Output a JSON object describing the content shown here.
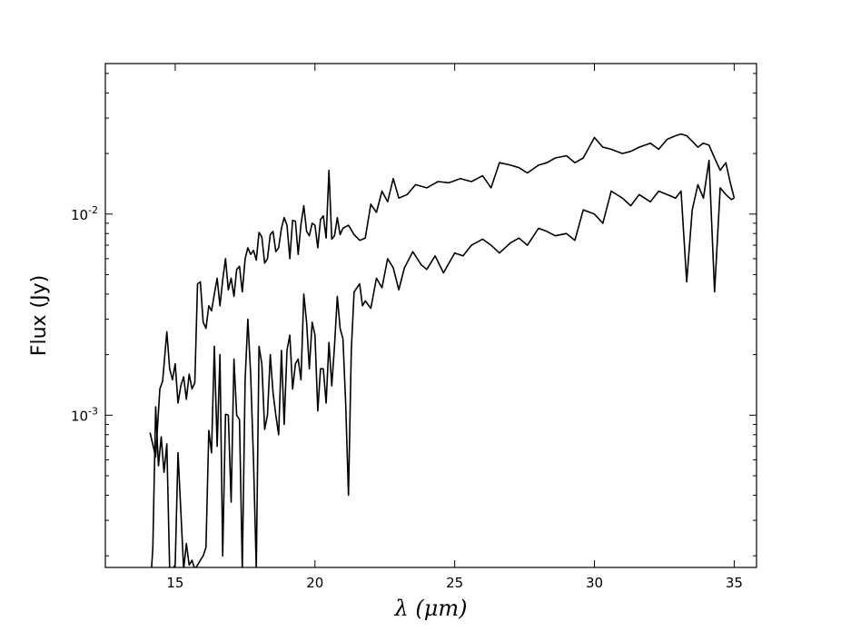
{
  "chart_data": {
    "type": "line",
    "title": "",
    "xlabel": "λ (μm)",
    "ylabel": "Flux (Jy)",
    "xlim": [
      12.5,
      35.8
    ],
    "ylim": [
      0.000175,
      0.056
    ],
    "yscale": "log",
    "x_ticks": [
      {
        "value": 15,
        "label": "15"
      },
      {
        "value": 20,
        "label": "20"
      },
      {
        "value": 25,
        "label": "25"
      },
      {
        "value": 30,
        "label": "30"
      },
      {
        "value": 35,
        "label": "35"
      }
    ],
    "y_ticks": [
      {
        "value": 0.001,
        "base": "10",
        "exp": "-3"
      },
      {
        "value": 0.01,
        "base": "10",
        "exp": "-2"
      }
    ],
    "y_minor_ticks": [
      0.0002,
      0.0003,
      0.0004,
      0.0005,
      0.0006,
      0.0007,
      0.0008,
      0.0009,
      0.002,
      0.003,
      0.004,
      0.005,
      0.006,
      0.007,
      0.008,
      0.009,
      0.02,
      0.03,
      0.04,
      0.05
    ],
    "x_minor_ticks": [],
    "grid": false,
    "series": [
      {
        "name": "",
        "color": "#000000",
        "x": [
          14.1,
          14.3,
          14.45,
          14.55,
          14.7,
          14.8,
          14.9,
          15.0,
          15.1,
          15.2,
          15.3,
          15.4,
          15.5,
          15.6,
          15.7,
          15.8,
          15.9,
          16.0,
          16.1,
          16.2,
          16.3,
          16.4,
          16.5,
          16.6,
          16.7,
          16.8,
          16.9,
          17.0,
          17.1,
          17.2,
          17.3,
          17.4,
          17.5,
          17.6,
          17.7,
          17.8,
          17.9,
          18.0,
          18.1,
          18.2,
          18.3,
          18.4,
          18.5,
          18.6,
          18.7,
          18.8,
          18.9,
          19.0,
          19.1,
          19.2,
          19.3,
          19.4,
          19.5,
          19.6,
          19.7,
          19.8,
          19.9,
          20.0,
          20.1,
          20.2,
          20.3,
          20.4,
          20.5,
          20.6,
          20.7,
          20.8,
          20.9,
          21.0,
          21.2,
          21.4,
          21.6,
          21.8,
          22.0,
          22.2,
          22.4,
          22.6,
          22.8,
          23.0,
          23.3,
          23.6,
          24.0,
          24.4,
          24.8,
          25.2,
          25.6,
          26.0,
          26.3,
          26.6,
          27.0,
          27.3,
          27.6,
          28.0,
          28.3,
          28.6,
          29.0,
          29.3,
          29.6,
          30.0,
          30.3,
          30.6,
          31.0,
          31.3,
          31.6,
          32.0,
          32.3,
          32.6,
          32.9,
          33.1,
          33.3,
          33.5,
          33.7,
          33.9,
          34.1,
          34.3,
          34.5,
          34.7,
          34.85,
          35.0
        ],
        "y": [
          0.00082,
          0.00062,
          0.00135,
          0.00148,
          0.0026,
          0.0017,
          0.0015,
          0.0018,
          0.00115,
          0.0014,
          0.00155,
          0.0012,
          0.0016,
          0.00135,
          0.00145,
          0.0045,
          0.0046,
          0.0029,
          0.0027,
          0.0035,
          0.0033,
          0.004,
          0.0048,
          0.0035,
          0.0047,
          0.006,
          0.0042,
          0.0048,
          0.0039,
          0.0053,
          0.0055,
          0.0041,
          0.006,
          0.0068,
          0.0063,
          0.0066,
          0.0059,
          0.0081,
          0.0077,
          0.0057,
          0.006,
          0.0079,
          0.0082,
          0.0065,
          0.0068,
          0.0085,
          0.0096,
          0.0088,
          0.006,
          0.0093,
          0.0092,
          0.0063,
          0.0089,
          0.011,
          0.0082,
          0.0078,
          0.009,
          0.0088,
          0.0068,
          0.0094,
          0.0098,
          0.0076,
          0.0165,
          0.0075,
          0.0078,
          0.0096,
          0.0079,
          0.0085,
          0.0088,
          0.0079,
          0.0074,
          0.0076,
          0.0112,
          0.0102,
          0.013,
          0.0115,
          0.015,
          0.012,
          0.0125,
          0.014,
          0.0135,
          0.0145,
          0.0143,
          0.015,
          0.0145,
          0.0155,
          0.0135,
          0.018,
          0.0175,
          0.017,
          0.016,
          0.0175,
          0.018,
          0.019,
          0.0195,
          0.018,
          0.019,
          0.024,
          0.0215,
          0.021,
          0.02,
          0.0205,
          0.0215,
          0.0225,
          0.021,
          0.0235,
          0.0245,
          0.025,
          0.0245,
          0.023,
          0.0215,
          0.0225,
          0.022,
          0.019,
          0.0165,
          0.018,
          0.0145,
          0.012
        ]
      },
      {
        "name": "",
        "color": "#000000",
        "x": [
          14.15,
          14.2,
          14.3,
          14.4,
          14.5,
          14.6,
          14.7,
          14.8,
          14.9,
          15.0,
          15.1,
          15.3,
          15.4,
          15.5,
          15.6,
          15.7,
          15.8,
          15.9,
          16.0,
          16.1,
          16.2,
          16.3,
          16.4,
          16.5,
          16.6,
          16.7,
          16.8,
          16.9,
          17.0,
          17.1,
          17.2,
          17.3,
          17.4,
          17.5,
          17.6,
          17.7,
          17.8,
          17.9,
          18.0,
          18.1,
          18.2,
          18.3,
          18.4,
          18.5,
          18.6,
          18.7,
          18.8,
          18.9,
          19.0,
          19.1,
          19.2,
          19.3,
          19.4,
          19.5,
          19.6,
          19.7,
          19.8,
          19.9,
          20.0,
          20.1,
          20.2,
          20.3,
          20.4,
          20.5,
          20.6,
          20.7,
          20.8,
          20.9,
          21.0,
          21.1,
          21.2,
          21.3,
          21.4,
          21.5,
          21.6,
          21.7,
          21.8,
          22.0,
          22.2,
          22.4,
          22.6,
          22.8,
          23.0,
          23.2,
          23.5,
          23.8,
          24.0,
          24.3,
          24.6,
          25.0,
          25.3,
          25.6,
          26.0,
          26.3,
          26.6,
          27.0,
          27.3,
          27.6,
          28.0,
          28.3,
          28.6,
          29.0,
          29.3,
          29.6,
          30.0,
          30.3,
          30.6,
          31.0,
          31.3,
          31.6,
          32.0,
          32.3,
          32.6,
          32.9,
          33.1,
          33.3,
          33.5,
          33.7,
          33.9,
          34.1,
          34.3,
          34.5,
          34.7,
          34.9,
          35.0
        ],
        "y": [
          0.00016,
          0.00022,
          0.0011,
          0.00056,
          0.00078,
          0.00052,
          0.00072,
          0.00017,
          0.00016,
          0.00018,
          0.00065,
          0.00016,
          0.00023,
          0.00018,
          0.00019,
          0.00016,
          0.00018,
          0.00019,
          0.0002,
          0.00022,
          0.00084,
          0.00065,
          0.0022,
          0.0007,
          0.002,
          0.0002,
          0.00101,
          0.001,
          0.00037,
          0.0019,
          0.001,
          0.00095,
          0.00016,
          0.0015,
          0.003,
          0.0016,
          0.0006,
          0.00016,
          0.0022,
          0.0018,
          0.00085,
          0.001,
          0.002,
          0.0013,
          0.001,
          0.0008,
          0.0021,
          0.0009,
          0.0021,
          0.0025,
          0.00135,
          0.0018,
          0.0019,
          0.0015,
          0.004,
          0.0029,
          0.0017,
          0.0029,
          0.0025,
          0.00105,
          0.0017,
          0.0017,
          0.00115,
          0.0023,
          0.0014,
          0.0022,
          0.0039,
          0.0027,
          0.0024,
          0.00115,
          0.0004,
          0.0021,
          0.0041,
          0.0043,
          0.0045,
          0.0035,
          0.0037,
          0.0034,
          0.0048,
          0.0043,
          0.006,
          0.0054,
          0.0042,
          0.0054,
          0.0065,
          0.0056,
          0.0053,
          0.0062,
          0.0051,
          0.0064,
          0.0062,
          0.007,
          0.0075,
          0.007,
          0.0064,
          0.0072,
          0.0076,
          0.007,
          0.0085,
          0.0082,
          0.0078,
          0.008,
          0.0074,
          0.0105,
          0.01,
          0.009,
          0.013,
          0.012,
          0.011,
          0.0125,
          0.0115,
          0.013,
          0.0125,
          0.012,
          0.013,
          0.0046,
          0.0105,
          0.014,
          0.012,
          0.0185,
          0.0041,
          0.0135,
          0.0125,
          0.0118,
          0.012
        ]
      }
    ]
  }
}
